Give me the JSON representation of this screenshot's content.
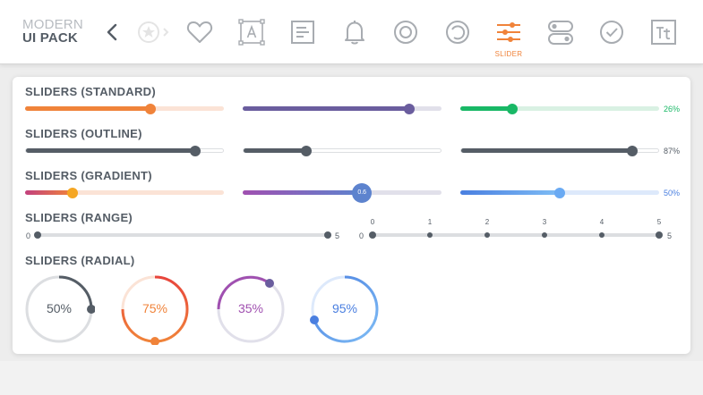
{
  "logo": {
    "line1": "MODERN",
    "line2": "UI PACK"
  },
  "nav": {
    "back_icon": "chevron-left-icon",
    "items": [
      {
        "icon": "star-badge-icon"
      },
      {
        "icon": "heart-icon"
      },
      {
        "icon": "text-box-icon"
      },
      {
        "icon": "document-icon"
      },
      {
        "icon": "bell-icon"
      },
      {
        "icon": "radio-icon"
      },
      {
        "icon": "loader-icon"
      },
      {
        "icon": "sliders-icon",
        "label": "SLIDER",
        "active": true
      },
      {
        "icon": "toggles-icon"
      },
      {
        "icon": "check-circle-icon"
      },
      {
        "icon": "typography-icon"
      }
    ]
  },
  "colors": {
    "orange": "#f0833a",
    "purple": "#6a5d9e",
    "green": "#19b866",
    "dark": "#555d66",
    "blue": "#5b9bf0",
    "pink": "#c2407e"
  },
  "sections": {
    "standard": {
      "title": "SLIDERS (STANDARD)",
      "sliders": [
        {
          "value": 0.63,
          "color": "#f0833a"
        },
        {
          "value": 0.84,
          "color": "#6a5d9e"
        },
        {
          "value": 0.26,
          "color": "#19b866",
          "label": "26%"
        }
      ]
    },
    "outline": {
      "title": "SLIDERS (OUTLINE)",
      "sliders": [
        {
          "value": 0.86
        },
        {
          "value": 0.32
        },
        {
          "value": 0.87,
          "label": "87%"
        }
      ]
    },
    "gradient": {
      "title": "SLIDERS (GRADIENT)",
      "sliders": [
        {
          "value": 0.24
        },
        {
          "value": 0.6,
          "label": "0.6"
        },
        {
          "value": 0.5,
          "label": "50%"
        }
      ]
    },
    "range": {
      "title": "SLIDERS (RANGE)",
      "left": {
        "min_label": "0",
        "max_label": "5"
      },
      "right": {
        "min_label": "0",
        "max_label": "5",
        "ticks": [
          "0",
          "1",
          "2",
          "3",
          "4",
          "5"
        ]
      }
    },
    "radial": {
      "title": "SLIDERS (RADIAL)",
      "items": [
        {
          "value": 0.5,
          "label": "50%",
          "color": "#555d66"
        },
        {
          "value": 0.75,
          "label": "75%",
          "color": "#f0833a"
        },
        {
          "value": 0.35,
          "label": "35%",
          "color": "#a050b0"
        },
        {
          "value": 0.95,
          "label": "95%",
          "color": "#5b9bf0"
        }
      ]
    }
  }
}
